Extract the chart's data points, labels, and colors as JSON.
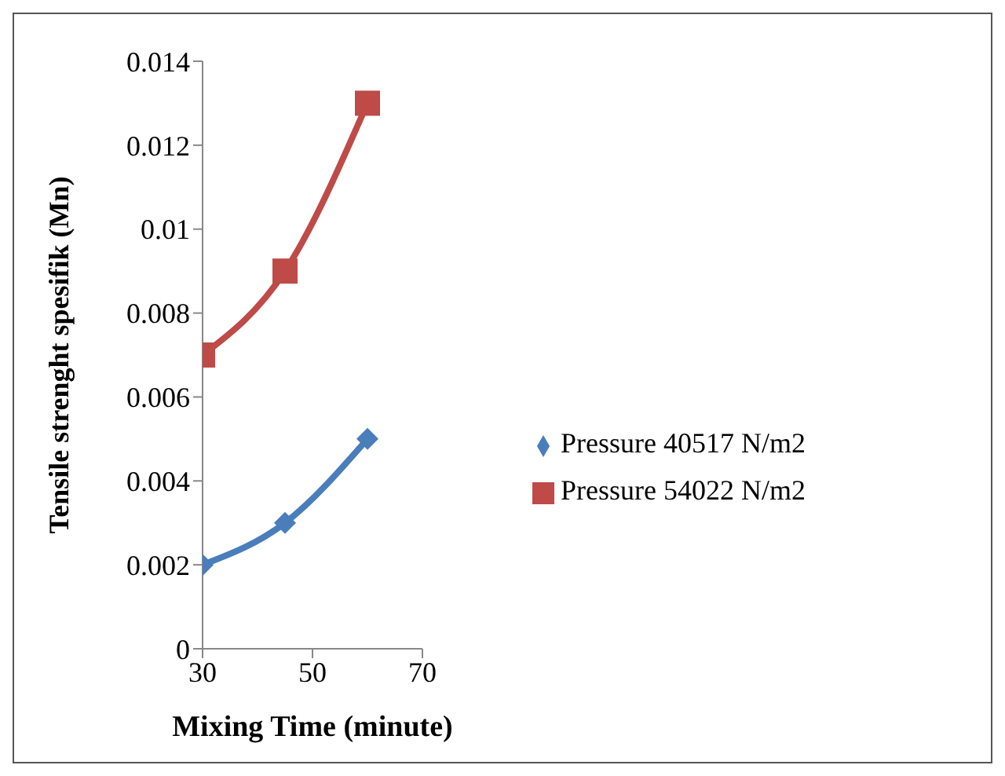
{
  "chart_data": {
    "type": "line",
    "xlabel": "Mixing Time (minute)",
    "ylabel": "Tensile strenght spesifik (Mn)",
    "x": [
      30,
      45,
      60
    ],
    "series": [
      {
        "name": "Pressure 40517 N/m2",
        "color": "#4a7ebb",
        "values": [
          0.002,
          0.003,
          0.005
        ],
        "marker": "diamond"
      },
      {
        "name": "Pressure 54022 N/m2",
        "color": "#be4b48",
        "values": [
          0.007,
          0.009,
          0.013
        ],
        "marker": "square"
      }
    ],
    "xlim": [
      30,
      70
    ],
    "xticks": [
      30,
      50,
      70
    ],
    "ylim": [
      0,
      0.014
    ],
    "yticks": [
      0,
      0.002,
      0.004,
      0.006,
      0.008,
      0.01,
      0.012,
      0.014
    ],
    "grid": false,
    "legend": "right"
  }
}
